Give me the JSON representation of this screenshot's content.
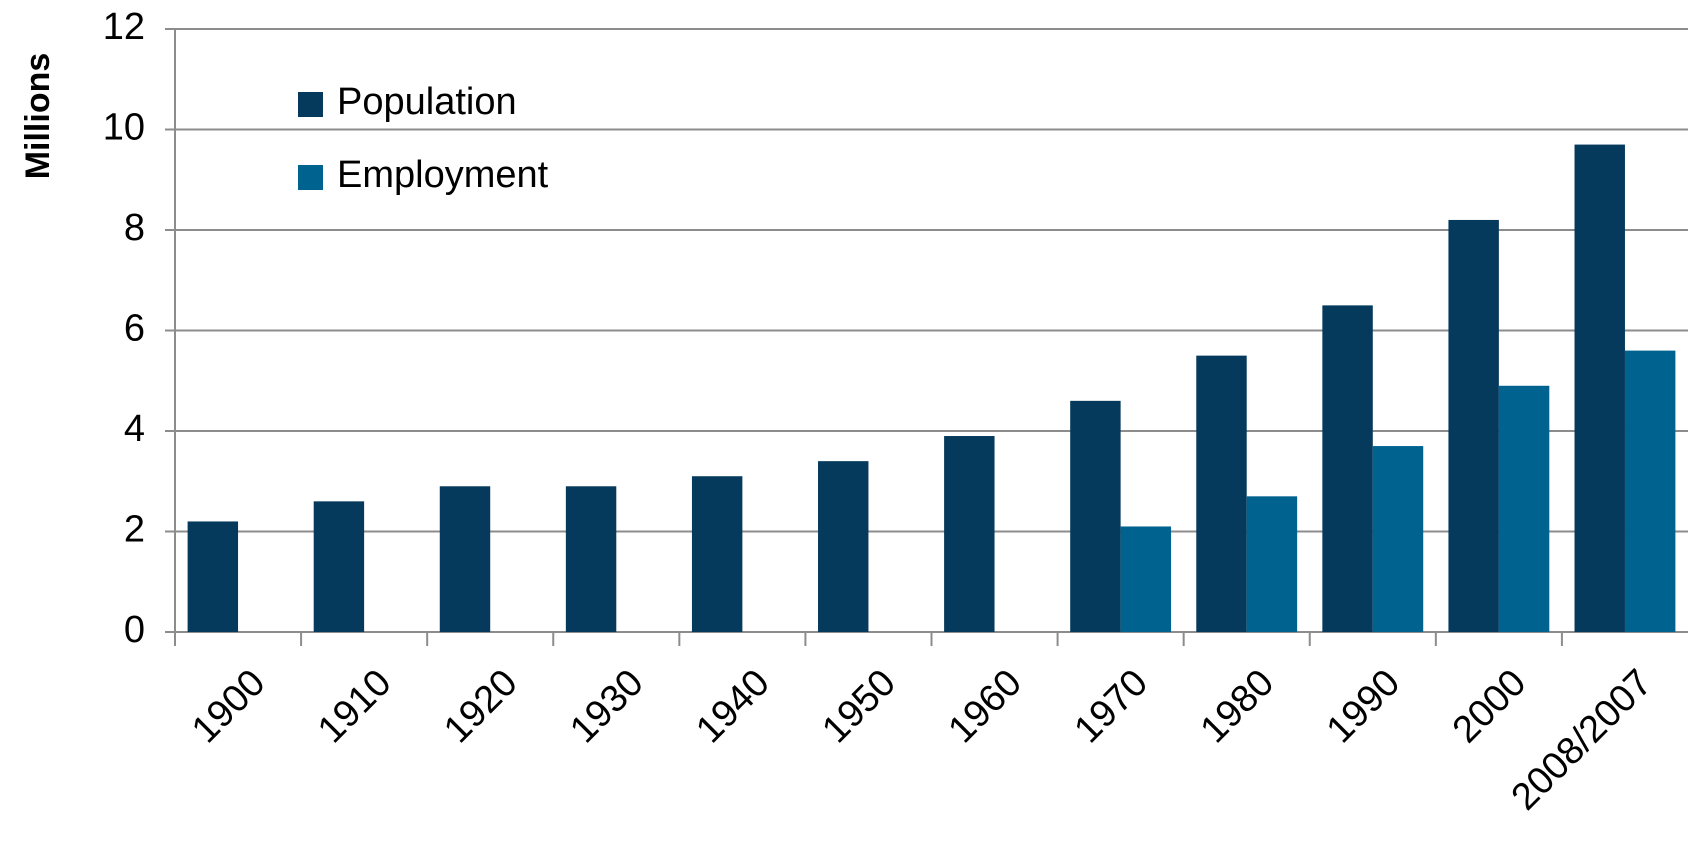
{
  "chart_data": {
    "type": "bar",
    "y_label": "Millions",
    "categories": [
      "1900",
      "1910",
      "1920",
      "1930",
      "1940",
      "1950",
      "1960",
      "1970",
      "1980",
      "1990",
      "2000",
      "2008/2007"
    ],
    "series": [
      {
        "name": "Population",
        "color": "#053a5c",
        "values": [
          2.2,
          2.6,
          2.9,
          2.9,
          3.1,
          3.4,
          3.9,
          4.6,
          5.5,
          6.5,
          8.2,
          9.7
        ]
      },
      {
        "name": "Employment",
        "color": "#00628e",
        "values": [
          null,
          null,
          null,
          null,
          null,
          null,
          null,
          2.1,
          2.7,
          3.7,
          4.9,
          5.6
        ]
      }
    ],
    "ylim": [
      0,
      12
    ],
    "yticks": [
      0,
      2,
      4,
      6,
      8,
      10,
      12
    ],
    "grid": true,
    "legend": "upper left"
  }
}
